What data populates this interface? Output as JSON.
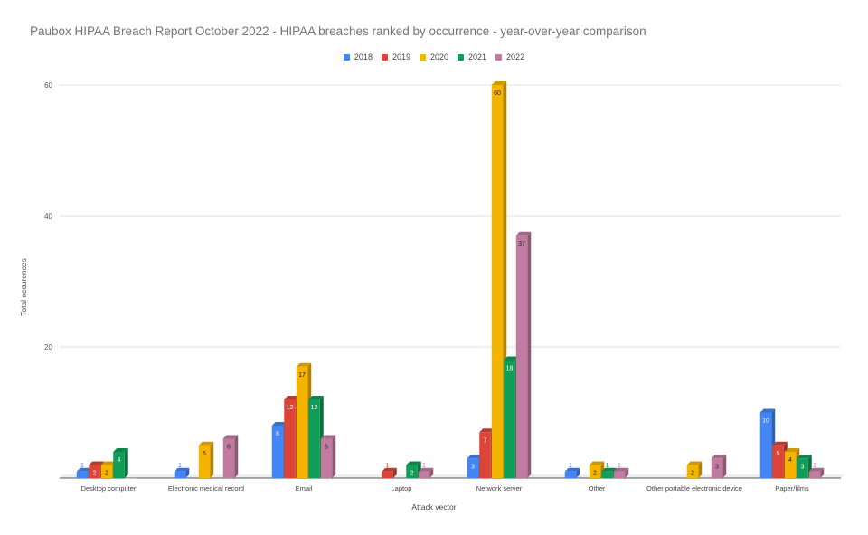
{
  "chart_data": {
    "type": "bar",
    "title": "Paubox HIPAA Breach Report October 2022 - HIPAA breaches ranked by occurrence - year-over-year comparison",
    "xlabel": "Attack vector",
    "ylabel": "Total occurences",
    "ylim": [
      0,
      60
    ],
    "yticks": [
      20,
      40,
      60
    ],
    "grid": true,
    "legend_position": "top-center",
    "categories": [
      "Desktop computer",
      "Electronic medical record",
      "Email",
      "Laptop",
      "Network server",
      "Other",
      "Other portable electronic device",
      "Paper/films"
    ],
    "series": [
      {
        "name": "2018",
        "color": "#4285f4",
        "values": [
          1,
          1,
          8,
          null,
          3,
          1,
          null,
          10
        ]
      },
      {
        "name": "2019",
        "color": "#db4437",
        "values": [
          2,
          null,
          12,
          1,
          7,
          null,
          null,
          5
        ]
      },
      {
        "name": "2020",
        "color": "#f4b400",
        "values": [
          2,
          5,
          17,
          null,
          60,
          2,
          2,
          4
        ]
      },
      {
        "name": "2021",
        "color": "#0f9d58",
        "values": [
          4,
          null,
          12,
          2,
          18,
          1,
          null,
          3
        ]
      },
      {
        "name": "2022",
        "color": "#c27ba0",
        "values": [
          0,
          6,
          6,
          1,
          37,
          1,
          3,
          1
        ]
      }
    ]
  }
}
